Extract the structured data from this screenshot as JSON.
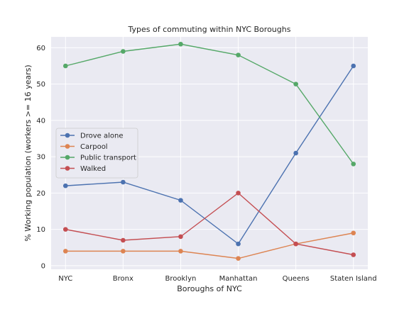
{
  "chart_data": {
    "type": "line",
    "title": "Types of commuting within NYC Boroughs",
    "xlabel": "Boroughs of NYC",
    "ylabel": "% Working population (workers >= 16 years)",
    "categories": [
      "NYC",
      "Bronx",
      "Brooklyn",
      "Manhattan",
      "Queens",
      "Staten Island"
    ],
    "yticks": [
      0,
      10,
      20,
      30,
      40,
      50,
      60
    ],
    "ylim": [
      -1,
      63
    ],
    "grid": true,
    "legend_position": "center-left",
    "series": [
      {
        "name": "Drove alone",
        "color": "#4c72b0",
        "values": [
          22,
          23,
          18,
          6,
          31,
          55
        ]
      },
      {
        "name": "Carpool",
        "color": "#dd8452",
        "values": [
          4,
          4,
          4,
          2,
          6,
          9
        ]
      },
      {
        "name": "Public transport",
        "color": "#55a868",
        "values": [
          55,
          59,
          61,
          58,
          50,
          28
        ]
      },
      {
        "name": "Walked",
        "color": "#c44e52",
        "values": [
          10,
          7,
          8,
          20,
          6,
          3
        ]
      }
    ]
  }
}
